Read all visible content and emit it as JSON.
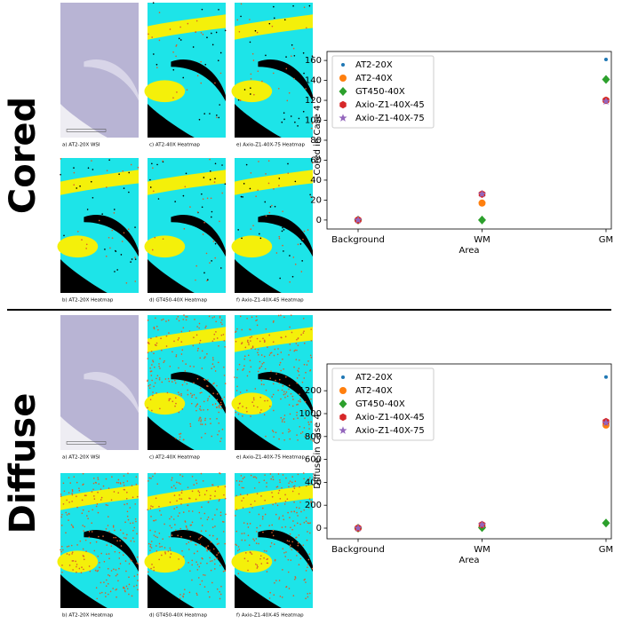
{
  "sections": [
    {
      "label": "Cored",
      "panels": [
        "a) AT2-20X WSI",
        "c) AT2-40X Heatmap",
        "e) Axio-Z1-40X-75 Heatmap",
        "b) AT2-20X Heatmap",
        "d) GT450-40X Heatmap",
        "f) Axio-Z1-40X-45 Heatmap"
      ]
    },
    {
      "label": "Diffuse",
      "panels": [
        "a) AT2-20X WSI",
        "c) AT2-40X Heatmap",
        "e) Axio-Z1-40X-75 Heatmap",
        "b) AT2-20X Heatmap",
        "d) GT450-40X Heatmap",
        "f) Axio-Z1-40X-45 Heatmap"
      ]
    }
  ],
  "chart_data": [
    {
      "type": "scatter",
      "xlabel": "Area",
      "ylabel": "Cored in Case 4",
      "categories": [
        "Background",
        "WM",
        "GM"
      ],
      "ylim": [
        -9,
        169
      ],
      "yticks": [
        0,
        20,
        40,
        60,
        80,
        100,
        120,
        140,
        160
      ],
      "legend": "upper left",
      "series": [
        {
          "name": "AT2-20X",
          "color": "#1f77b4",
          "marker": "point",
          "values": [
            0,
            25,
            161
          ]
        },
        {
          "name": "AT2-40X",
          "color": "#ff7f0e",
          "marker": "circle",
          "values": [
            0,
            17,
            120
          ]
        },
        {
          "name": "GT450-40X",
          "color": "#2ca02c",
          "marker": "diamond",
          "values": [
            0,
            0,
            141
          ]
        },
        {
          "name": "Axio-Z1-40X-45",
          "color": "#d62728",
          "marker": "hexagon",
          "values": [
            0,
            26,
            120
          ]
        },
        {
          "name": "Axio-Z1-40X-75",
          "color": "#9467bd",
          "marker": "star",
          "values": [
            0,
            26,
            119
          ]
        }
      ]
    },
    {
      "type": "scatter",
      "xlabel": "Area",
      "ylabel": "Diffuse in Case 4",
      "categories": [
        "Background",
        "WM",
        "GM"
      ],
      "ylim": [
        -93,
        1434
      ],
      "yticks": [
        0,
        200,
        400,
        600,
        800,
        1000,
        1200
      ],
      "legend": "upper left",
      "series": [
        {
          "name": "AT2-20X",
          "color": "#1f77b4",
          "marker": "point",
          "values": [
            0,
            15,
            1320
          ]
        },
        {
          "name": "AT2-40X",
          "color": "#ff7f0e",
          "marker": "circle",
          "values": [
            0,
            10,
            900
          ]
        },
        {
          "name": "GT450-40X",
          "color": "#2ca02c",
          "marker": "diamond",
          "values": [
            0,
            5,
            45
          ]
        },
        {
          "name": "Axio-Z1-40X-45",
          "color": "#d62728",
          "marker": "hexagon",
          "values": [
            0,
            30,
            930
          ]
        },
        {
          "name": "Axio-Z1-40X-75",
          "color": "#9467bd",
          "marker": "star",
          "values": [
            0,
            30,
            920
          ]
        }
      ]
    }
  ]
}
